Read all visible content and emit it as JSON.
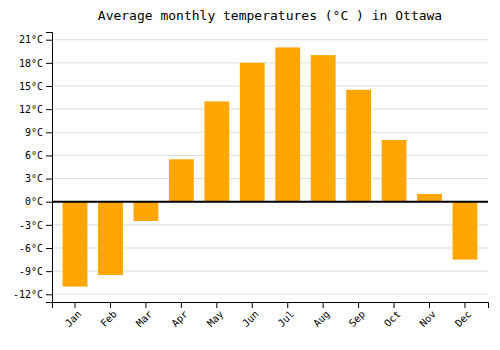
{
  "chart_data": {
    "type": "bar",
    "title": "Average monthly temperatures (°C ) in Ottawa",
    "categories": [
      "Jan",
      "Feb",
      "Mar",
      "Apr",
      "May",
      "Jun",
      "Jul",
      "Aug",
      "Sep",
      "Oct",
      "Nov",
      "Dec"
    ],
    "values": [
      -11,
      -9.5,
      -2.5,
      5.5,
      13,
      18,
      20,
      19,
      14.5,
      8,
      1,
      -7.5
    ],
    "color": "#FFA500",
    "ylim": [
      -13,
      22
    ],
    "yticks": [
      {
        "value": -12,
        "label": "-12°C"
      },
      {
        "value": -9,
        "label": "-9°C"
      },
      {
        "value": -6,
        "label": "-6°C"
      },
      {
        "value": -3,
        "label": "-3°C"
      },
      {
        "value": 0,
        "label": "0°C"
      },
      {
        "value": 3,
        "label": "3°C"
      },
      {
        "value": 6,
        "label": "6°C"
      },
      {
        "value": 9,
        "label": "9°C"
      },
      {
        "value": 12,
        "label": "12°C"
      },
      {
        "value": 15,
        "label": "15°C"
      },
      {
        "value": 18,
        "label": "18°C"
      },
      {
        "value": 21,
        "label": "21°C"
      }
    ],
    "grid": true
  }
}
